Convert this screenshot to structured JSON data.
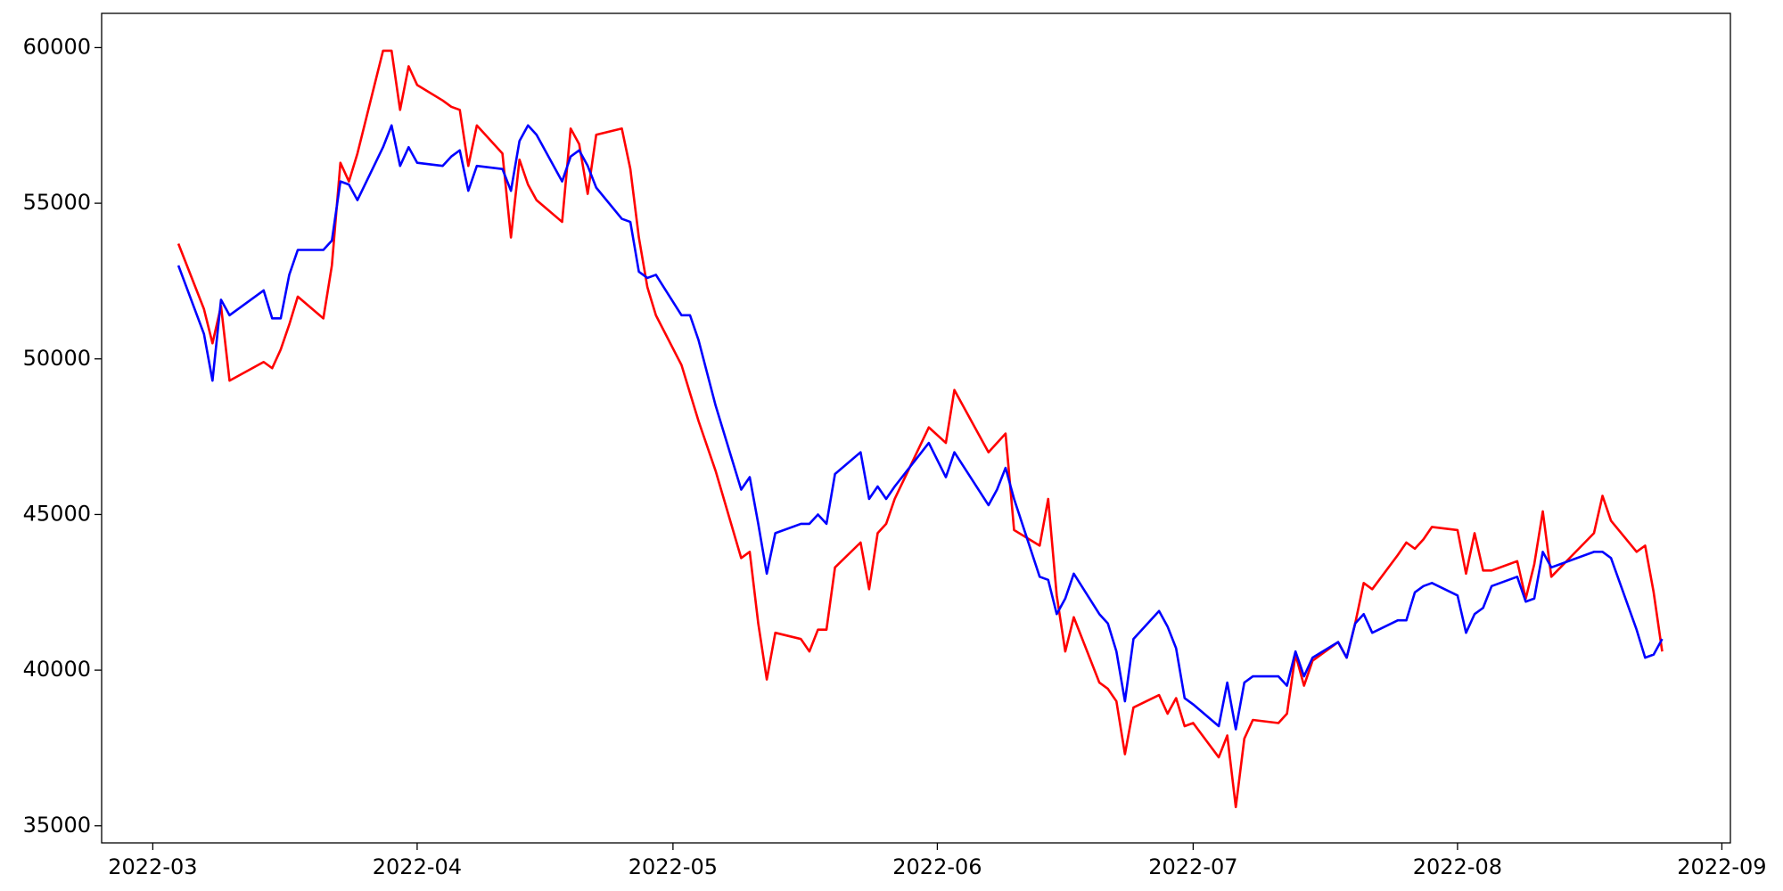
{
  "chart_data": {
    "type": "line",
    "x": [
      "2022-03-04",
      "2022-03-07",
      "2022-03-08",
      "2022-03-09",
      "2022-03-10",
      "2022-03-14",
      "2022-03-15",
      "2022-03-16",
      "2022-03-17",
      "2022-03-18",
      "2022-03-21",
      "2022-03-22",
      "2022-03-23",
      "2022-03-24",
      "2022-03-25",
      "2022-03-28",
      "2022-03-29",
      "2022-03-30",
      "2022-03-31",
      "2022-04-01",
      "2022-04-04",
      "2022-04-05",
      "2022-04-06",
      "2022-04-07",
      "2022-04-08",
      "2022-04-11",
      "2022-04-12",
      "2022-04-13",
      "2022-04-14",
      "2022-04-15",
      "2022-04-18",
      "2022-04-19",
      "2022-04-20",
      "2022-04-21",
      "2022-04-22",
      "2022-04-25",
      "2022-04-26",
      "2022-04-27",
      "2022-04-28",
      "2022-04-29",
      "2022-05-02",
      "2022-05-03",
      "2022-05-04",
      "2022-05-06",
      "2022-05-09",
      "2022-05-10",
      "2022-05-11",
      "2022-05-12",
      "2022-05-13",
      "2022-05-16",
      "2022-05-17",
      "2022-05-18",
      "2022-05-19",
      "2022-05-20",
      "2022-05-23",
      "2022-05-24",
      "2022-05-25",
      "2022-05-26",
      "2022-05-27",
      "2022-05-31",
      "2022-06-02",
      "2022-06-03",
      "2022-06-07",
      "2022-06-08",
      "2022-06-09",
      "2022-06-10",
      "2022-06-13",
      "2022-06-14",
      "2022-06-15",
      "2022-06-16",
      "2022-06-17",
      "2022-06-20",
      "2022-06-21",
      "2022-06-22",
      "2022-06-23",
      "2022-06-24",
      "2022-06-27",
      "2022-06-28",
      "2022-06-29",
      "2022-06-30",
      "2022-07-01",
      "2022-07-04",
      "2022-07-05",
      "2022-07-06",
      "2022-07-07",
      "2022-07-08",
      "2022-07-11",
      "2022-07-12",
      "2022-07-13",
      "2022-07-14",
      "2022-07-15",
      "2022-07-18",
      "2022-07-19",
      "2022-07-20",
      "2022-07-21",
      "2022-07-22",
      "2022-07-25",
      "2022-07-26",
      "2022-07-27",
      "2022-07-28",
      "2022-07-29",
      "2022-08-01",
      "2022-08-02",
      "2022-08-03",
      "2022-08-04",
      "2022-08-05",
      "2022-08-08",
      "2022-08-09",
      "2022-08-10",
      "2022-08-11",
      "2022-08-12",
      "2022-08-17",
      "2022-08-18",
      "2022-08-19",
      "2022-08-22",
      "2022-08-23",
      "2022-08-24",
      "2022-08-25"
    ],
    "series": [
      {
        "color": "#ff0000",
        "values": [
          53700,
          51600,
          50500,
          51700,
          49300,
          49900,
          49700,
          50300,
          51100,
          52000,
          51300,
          53000,
          56300,
          55700,
          56600,
          59900,
          59900,
          58000,
          59400,
          58800,
          58300,
          58100,
          58000,
          56200,
          57500,
          56600,
          53900,
          56400,
          55600,
          55100,
          54400,
          57400,
          56900,
          55300,
          57200,
          57400,
          56100,
          53900,
          52300,
          51400,
          49800,
          48900,
          48000,
          46400,
          43600,
          43800,
          41500,
          39700,
          41200,
          41000,
          40600,
          41300,
          41300,
          43300,
          44100,
          42600,
          44400,
          44700,
          45500,
          47800,
          47300,
          49000,
          47000,
          47300,
          47600,
          44500,
          44000,
          45500,
          42400,
          40600,
          41700,
          39600,
          39400,
          39000,
          37300,
          38800,
          39200,
          38600,
          39100,
          38200,
          38300,
          37200,
          37900,
          35600,
          37800,
          38400,
          38300,
          38600,
          40500,
          39500,
          40300,
          40900,
          40400,
          41500,
          42800,
          42600,
          43700,
          44100,
          43900,
          44200,
          44600,
          44500,
          43100,
          44400,
          43200,
          43200,
          43500,
          42300,
          43400,
          45100,
          43000,
          44400,
          45600,
          44800,
          43800,
          44000,
          42500,
          40600
        ]
      },
      {
        "color": "#0000ff",
        "values": [
          53000,
          50800,
          49300,
          51900,
          51400,
          52200,
          51300,
          51300,
          52700,
          53500,
          53500,
          53800,
          55700,
          55600,
          55100,
          56800,
          57500,
          56200,
          56800,
          56300,
          56200,
          56500,
          56700,
          55400,
          56200,
          56100,
          55400,
          57000,
          57500,
          57200,
          55700,
          56500,
          56700,
          56200,
          55500,
          54500,
          54400,
          52800,
          52600,
          52700,
          51400,
          51400,
          50600,
          48500,
          45800,
          46200,
          44700,
          43100,
          44400,
          44700,
          44700,
          45000,
          44700,
          46300,
          47000,
          45500,
          45900,
          45500,
          45900,
          47300,
          46200,
          47000,
          45300,
          45800,
          46500,
          45500,
          43000,
          42900,
          41800,
          42300,
          43100,
          41800,
          41500,
          40600,
          39000,
          41000,
          41900,
          41400,
          40700,
          39100,
          38900,
          38200,
          39600,
          38100,
          39600,
          39800,
          39800,
          39500,
          40600,
          39800,
          40400,
          40900,
          40400,
          41500,
          41800,
          41200,
          41600,
          41600,
          42500,
          42700,
          42800,
          42400,
          41200,
          41800,
          42000,
          42700,
          43000,
          42200,
          42300,
          43800,
          43300,
          43800,
          43800,
          43600,
          41300,
          40400,
          40500,
          41000
        ]
      }
    ],
    "xlim": [
      "2022-02-23",
      "2022-09-02"
    ],
    "xticks": [
      {
        "value": "2022-03-01",
        "label": "2022-03"
      },
      {
        "value": "2022-04-01",
        "label": "2022-04"
      },
      {
        "value": "2022-05-01",
        "label": "2022-05"
      },
      {
        "value": "2022-06-01",
        "label": "2022-06"
      },
      {
        "value": "2022-07-01",
        "label": "2022-07"
      },
      {
        "value": "2022-08-01",
        "label": "2022-08"
      },
      {
        "value": "2022-09-01",
        "label": "2022-09"
      }
    ],
    "ylim": [
      34450,
      61100
    ],
    "yticks": [
      35000,
      40000,
      45000,
      50000,
      55000,
      60000
    ],
    "grid": false
  }
}
